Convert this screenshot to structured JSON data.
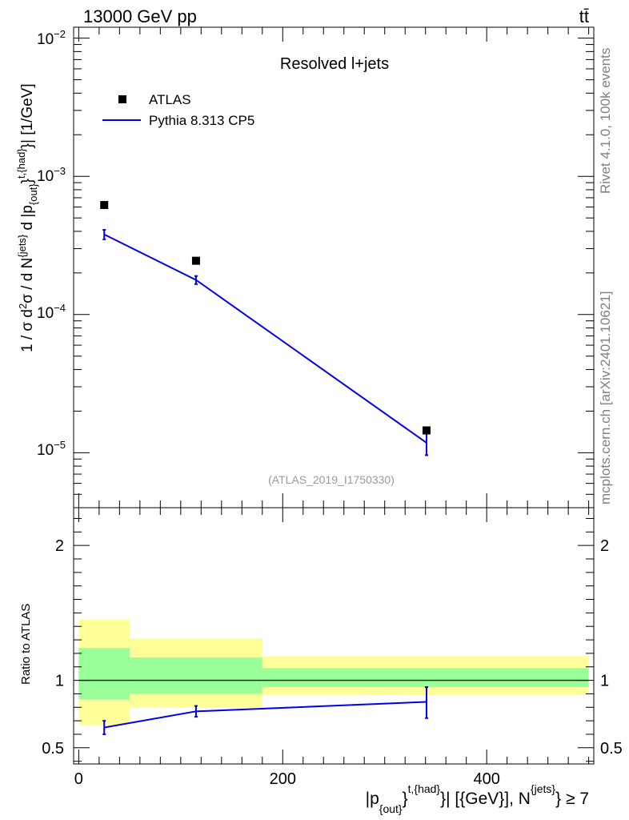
{
  "header": {
    "left": "13000 GeV pp",
    "right": "tt̄"
  },
  "side_labels": {
    "top": "Rivet 4.1.0,  100k events",
    "bottom": "mcplots.cern.ch [arXiv:2401.10621]"
  },
  "chart_data": [
    {
      "type": "scatter",
      "title": "Resolved l+jets",
      "analysis": "(ATLAS_2019_I1750330)",
      "yscale": "log",
      "ylim": [
        4e-06,
        0.012
      ],
      "xlim": [
        -5,
        505
      ],
      "ylabel": "1 / σ d²σ / d N^{jets} d |p_{out}^{t,{had}}| [1/GeV]",
      "ytick_labels": [
        "10⁻⁵",
        "10⁻⁴",
        "10⁻³",
        "10⁻²"
      ],
      "series": [
        {
          "name": "ATLAS",
          "marker": "square",
          "color": "#000000",
          "x": [
            25,
            115,
            341
          ],
          "y": [
            0.00062,
            0.000245,
            1.45e-05
          ]
        },
        {
          "name": "Pythia 8.313 CP5",
          "marker": "line",
          "color": "#0000ee",
          "x": [
            25,
            115,
            341
          ],
          "y": [
            0.00038,
            0.000178,
            1.18e-05
          ],
          "yerr": [
            3e-05,
            1.2e-05,
            2.2e-06
          ]
        }
      ]
    },
    {
      "type": "line",
      "ylabel": "Ratio to ATLAS",
      "xlabel": "|p_{out}^{t,{had}}| [{GeV}], N^{jets} ≥ 7",
      "xlim": [
        -5,
        505
      ],
      "ylim": [
        0.38,
        2.28
      ],
      "xticks": [
        0,
        200,
        400
      ],
      "yticks": [
        0.5,
        1,
        2
      ],
      "ytick_labels": [
        "0.5",
        "1",
        "2"
      ],
      "reference": 1,
      "bands": [
        {
          "x0": 0,
          "x1": 50,
          "yellow": [
            0.67,
            1.45
          ],
          "green": [
            0.86,
            1.24
          ]
        },
        {
          "x0": 50,
          "x1": 180,
          "yellow": [
            0.8,
            1.31
          ],
          "green": [
            0.9,
            1.17
          ]
        },
        {
          "x0": 180,
          "x1": 500,
          "yellow": [
            0.89,
            1.18
          ],
          "green": [
            0.95,
            1.09
          ]
        }
      ],
      "series": [
        {
          "name": "Pythia 8.313 CP5",
          "color": "#0000ee",
          "x": [
            25,
            115,
            341
          ],
          "y": [
            0.65,
            0.77,
            0.84
          ],
          "yerr_low": [
            0.05,
            0.04,
            0.12
          ],
          "yerr_high": [
            0.05,
            0.04,
            0.11
          ]
        }
      ]
    }
  ]
}
